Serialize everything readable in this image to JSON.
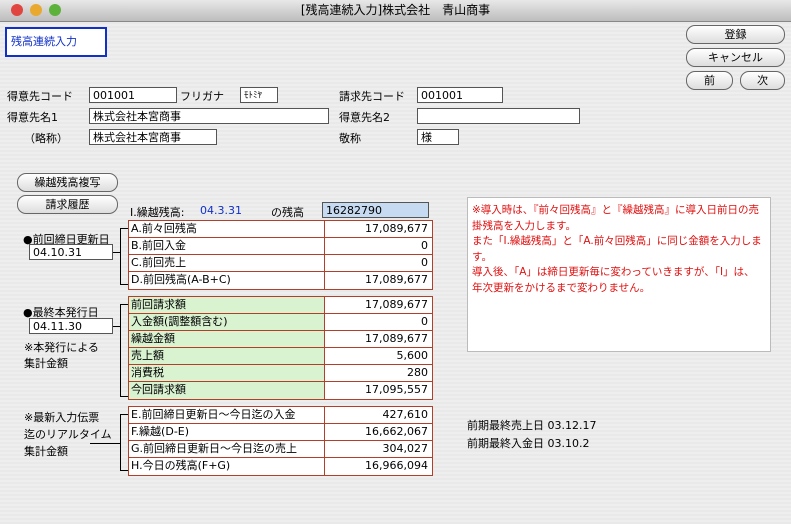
{
  "window": {
    "title": "[残高連続入力]株式会社　青山商事"
  },
  "header": {
    "title": "残高連続入力"
  },
  "buttons": {
    "register": "登録",
    "cancel": "キャンセル",
    "prev": "前",
    "next": "次",
    "copy_balance": "繰越残高複写",
    "billing_history": "請求履歴"
  },
  "customer": {
    "code_label": "得意先コード",
    "code": "001001",
    "kana_label": "フリガナ",
    "kana": "ﾓﾄﾐﾔ",
    "bill_code_label": "請求先コード",
    "bill_code": "001001",
    "name1_label": "得意先名1",
    "name1": "株式会社本宮商事",
    "name2_label": "得意先名2",
    "short_label": "（略称）",
    "short": "株式会社本宮商事",
    "honorific_label": "敬称",
    "honorific": "様"
  },
  "carryover": {
    "label": "I.繰越残高:",
    "date": "04.3.31",
    "suffix": "の残高",
    "value": "16282790"
  },
  "section1": {
    "label": "●前回締日更新日",
    "date": "04.10.31",
    "rows": [
      [
        "A.前々回残高",
        "17,089,677"
      ],
      [
        "B.前回入金",
        "0"
      ],
      [
        "C.前回売上",
        "0"
      ],
      [
        "D.前回残高(A-B+C)",
        "17,089,677"
      ]
    ]
  },
  "section2": {
    "label": "●最終本発行日",
    "date": "04.11.30",
    "note": [
      "※本発行による",
      "集計金額"
    ],
    "rows": [
      [
        "前回請求額",
        "17,089,677"
      ],
      [
        "入金額(調整額含む)",
        "0"
      ],
      [
        "繰越金額",
        "17,089,677"
      ],
      [
        "売上額",
        "5,600"
      ],
      [
        "消費税",
        "280"
      ],
      [
        "今回請求額",
        "17,095,557"
      ]
    ]
  },
  "section3": {
    "note": [
      "※最新入力伝票",
      "迄のリアルタイム",
      "集計金額"
    ],
    "rows": [
      [
        "E.前回締日更新日～今日迄の入金",
        "427,610"
      ],
      [
        "F.繰越(D-E)",
        "16,662,067"
      ],
      [
        "G.前回締日更新日～今日迄の売上",
        "304,027"
      ],
      [
        "H.今日の残高(F+G)",
        "16,966,094"
      ]
    ]
  },
  "notice": [
    "※導入時は、『前々回残高』と『繰越残高』に導入日前日の売",
    "掛残高を入力します。",
    " また「I.繰越残高」と「A.前々回残高」に同じ金額を入力しま",
    "す。",
    " 導入後、「A」は締日更新毎に変わっていきますが、「I」は、",
    "年次更新をかけるまで変わりません。"
  ],
  "last_dates": [
    {
      "label": "前期最終売上日",
      "value": "03.12.17"
    },
    {
      "label": "前期最終入金日",
      "value": "03.10.2"
    }
  ]
}
